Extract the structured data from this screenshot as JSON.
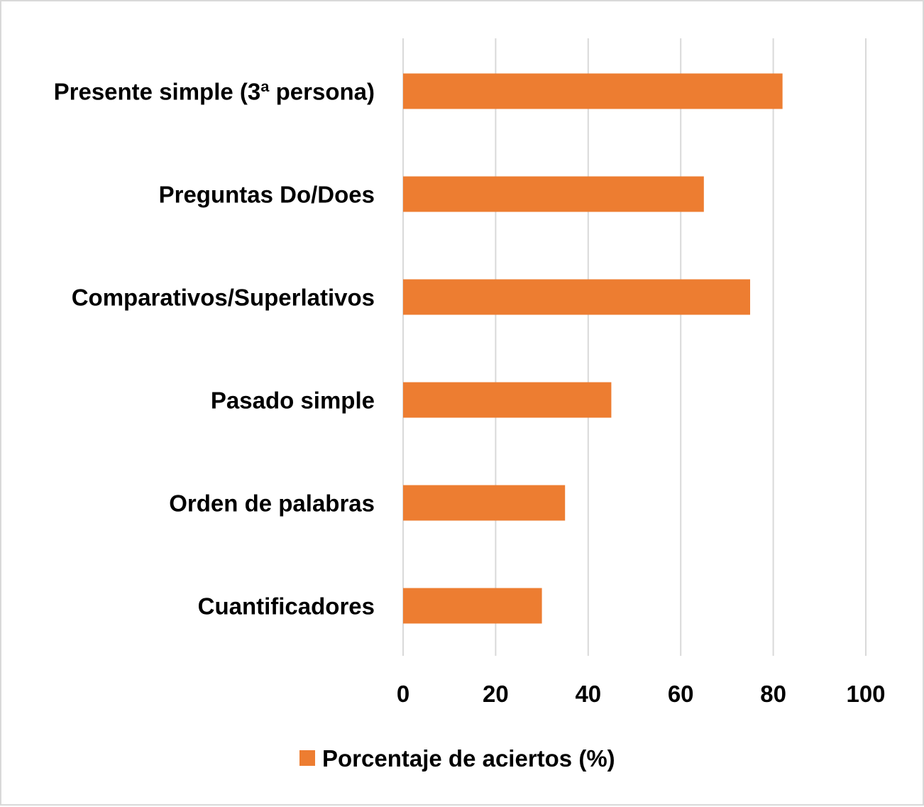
{
  "chart_data": {
    "type": "bar",
    "orientation": "horizontal",
    "categories": [
      "Presente simple (3ª persona)",
      "Preguntas Do/Does",
      "Comparativos/Superlativos",
      "Pasado simple",
      "Orden de palabras",
      "Cuantificadores"
    ],
    "series": [
      {
        "name": "Porcentaje de aciertos (%)",
        "values": [
          82,
          65,
          75,
          45,
          35,
          30
        ],
        "color": "#ED7D31"
      }
    ],
    "xlim": [
      0,
      100
    ],
    "xticks": [
      0,
      20,
      40,
      60,
      80,
      100
    ],
    "grid": true,
    "legend": "bottom",
    "title": "",
    "xlabel": "",
    "ylabel": ""
  }
}
